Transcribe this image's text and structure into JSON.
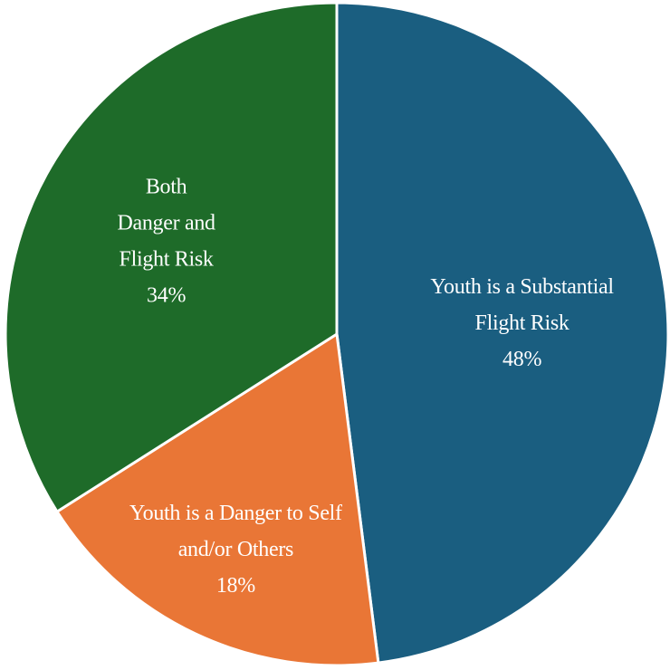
{
  "chart_data": {
    "type": "pie",
    "title": "",
    "start_angle_deg": 0,
    "direction": "clockwise",
    "slices": [
      {
        "label_lines": [
          "Youth is a Substantial",
          "Flight Risk"
        ],
        "value": 48,
        "value_label": "48%",
        "color": "#1a5e80"
      },
      {
        "label_lines": [
          "Youth is a Danger to Self",
          "and/or Others"
        ],
        "value": 18,
        "value_label": "18%",
        "color": "#e97636"
      },
      {
        "label_lines": [
          "Both",
          "Danger and",
          "Flight Risk"
        ],
        "value": 34,
        "value_label": "34%",
        "color": "#1e6b29"
      }
    ]
  }
}
